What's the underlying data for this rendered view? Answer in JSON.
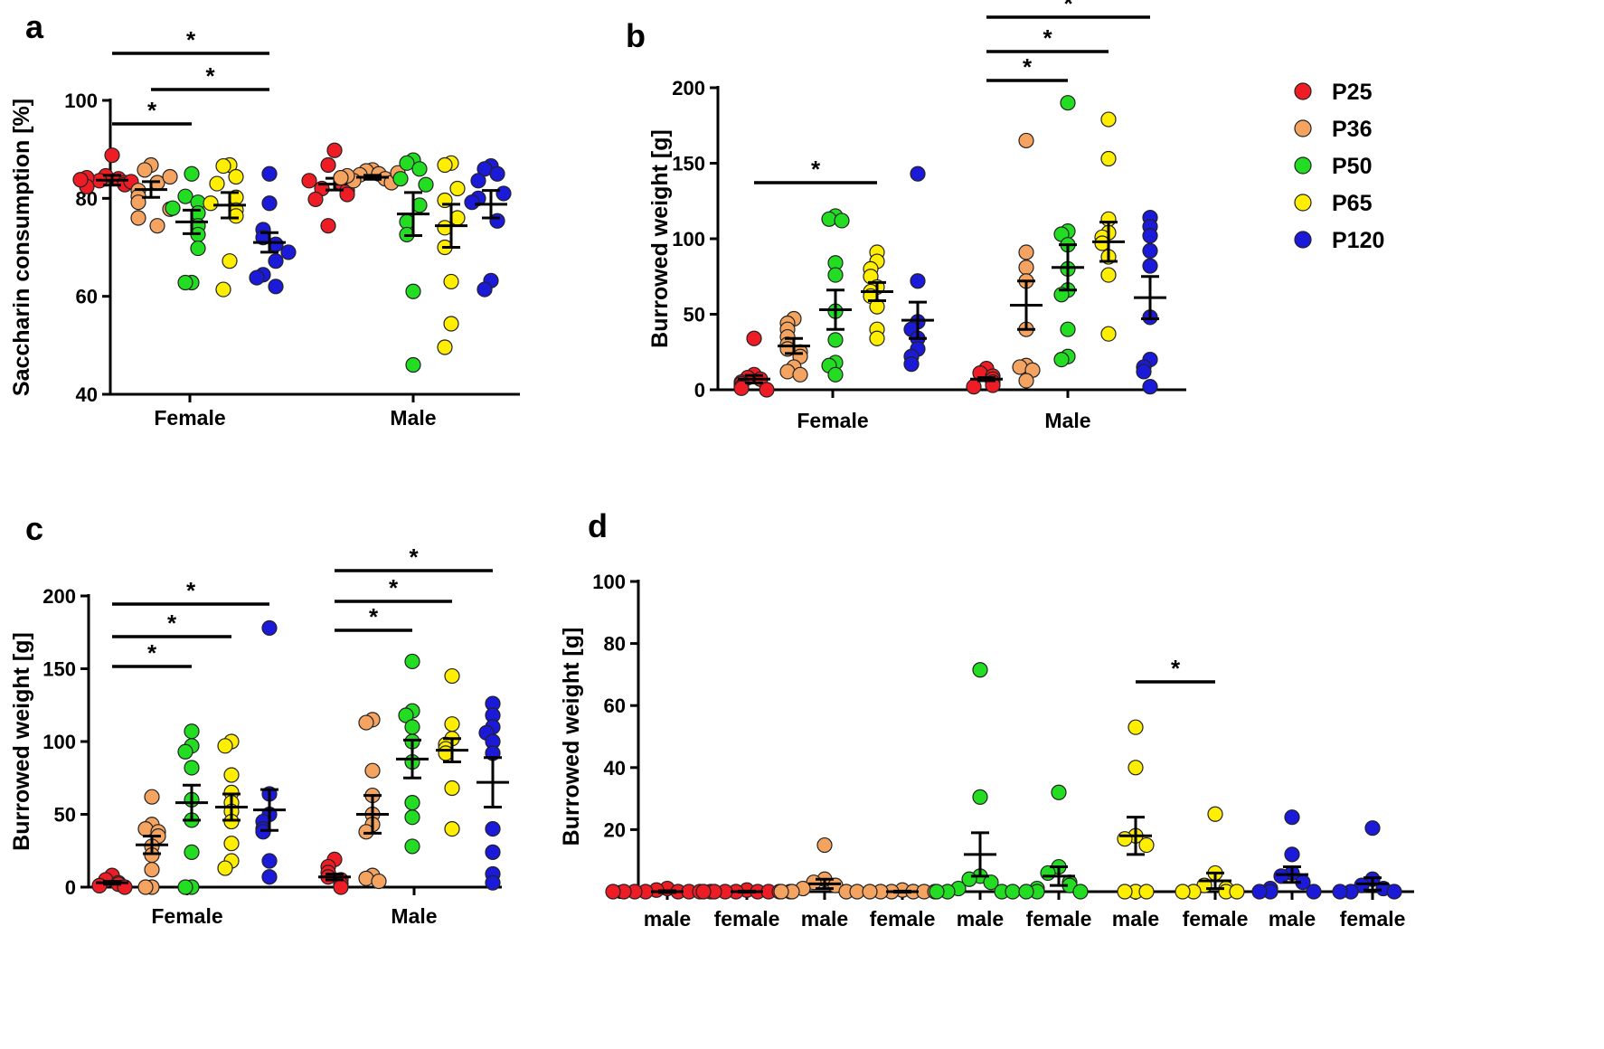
{
  "colors": {
    "P25": "#ee1c24",
    "P36": "#f4a460",
    "P50": "#22dd22",
    "P65": "#ffee00",
    "P120": "#1a1ad8"
  },
  "chart_data": [
    {
      "panel": "a",
      "type": "scatter",
      "ylabel": "Saccharin consumption [%]",
      "ylim": [
        40,
        100
      ],
      "yticks": [
        40,
        60,
        80,
        100
      ],
      "categories": [
        "Female",
        "Male"
      ],
      "groups": [
        {
          "category": "Female",
          "series": "P25",
          "mean": 83.7,
          "sem": 1.0,
          "points": [
            88.8,
            84.6,
            84.0,
            83.6,
            83.2,
            82.8,
            83.4,
            84.2,
            82.4,
            83.8
          ]
        },
        {
          "category": "Female",
          "series": "P36",
          "mean": 81.8,
          "sem": 1.6,
          "points": [
            86.8,
            85.8,
            83.2,
            81.6,
            80.4,
            79.2,
            76.0,
            74.4,
            77.8,
            84.4
          ]
        },
        {
          "category": "Female",
          "series": "P50",
          "mean": 75.2,
          "sem": 2.4,
          "points": [
            85.0,
            80.4,
            79.2,
            77.0,
            74.4,
            72.6,
            69.8,
            62.8,
            62.8,
            78.0
          ]
        },
        {
          "category": "Female",
          "series": "P65",
          "mean": 78.6,
          "sem": 2.6,
          "points": [
            86.8,
            86.6,
            84.4,
            83.0,
            80.2,
            77.6,
            76.4,
            67.2,
            61.4,
            79.0
          ]
        },
        {
          "category": "Female",
          "series": "P120",
          "mean": 71.0,
          "sem": 2.0,
          "points": [
            85.0,
            79.0,
            73.6,
            72.0,
            70.6,
            67.2,
            64.4,
            62.0,
            63.8,
            69.0
          ]
        },
        {
          "category": "Male",
          "series": "P25",
          "mean": 82.9,
          "sem": 1.2,
          "points": [
            89.8,
            86.8,
            84.2,
            83.2,
            82.0,
            81.6,
            80.8,
            79.8,
            74.4,
            83.6
          ]
        },
        {
          "category": "Male",
          "series": "P36",
          "mean": 84.3,
          "sem": 0.4,
          "points": [
            85.8,
            85.6,
            85.0,
            84.8,
            84.0,
            83.6,
            83.2,
            84.6,
            85.2,
            84.2
          ]
        },
        {
          "category": "Male",
          "series": "P50",
          "mean": 76.8,
          "sem": 4.4,
          "points": [
            87.8,
            87.2,
            86.0,
            84.0,
            82.8,
            78.6,
            75.2,
            72.6,
            61.0,
            46.0
          ]
        },
        {
          "category": "Male",
          "series": "P65",
          "mean": 74.4,
          "sem": 4.4,
          "points": [
            87.2,
            86.8,
            82.0,
            79.6,
            74.0,
            70.0,
            63.0,
            54.4,
            49.6,
            76.0
          ]
        },
        {
          "category": "Male",
          "series": "P120",
          "mean": 78.8,
          "sem": 2.8,
          "points": [
            86.6,
            86.0,
            85.0,
            83.6,
            81.0,
            80.0,
            75.4,
            63.2,
            61.4,
            79.2
          ]
        }
      ],
      "significance": [
        {
          "from": "Female P25",
          "to": "Female P50",
          "label": "*"
        },
        {
          "from": "Female P36",
          "to": "Female P120",
          "label": "*"
        },
        {
          "from": "Female P25",
          "to": "Female P120",
          "label": "*"
        }
      ]
    },
    {
      "panel": "b",
      "type": "scatter",
      "ylabel": "Burrowed weight [g]",
      "ylim": [
        0,
        200
      ],
      "yticks": [
        0,
        50,
        100,
        150,
        200
      ],
      "categories": [
        "Female",
        "Male"
      ],
      "legend": {
        "position": "top-right",
        "entries": [
          "P25",
          "P36",
          "P50",
          "P65",
          "P120"
        ]
      },
      "groups": [
        {
          "category": "Female",
          "series": "P25",
          "mean": 7,
          "sem": 2.5,
          "points": [
            34,
            10,
            8,
            7,
            5,
            4,
            2,
            1,
            0
          ]
        },
        {
          "category": "Female",
          "series": "P36",
          "mean": 29,
          "sem": 5,
          "points": [
            47,
            44,
            40,
            35,
            30,
            27,
            25,
            22,
            15,
            12,
            10
          ]
        },
        {
          "category": "Female",
          "series": "P50",
          "mean": 53,
          "sem": 13,
          "points": [
            115,
            113,
            112,
            84,
            76,
            52,
            33,
            18,
            16,
            10
          ]
        },
        {
          "category": "Female",
          "series": "P65",
          "mean": 65,
          "sem": 6,
          "points": [
            91,
            85,
            80,
            75,
            68,
            65,
            62,
            55,
            40,
            34
          ]
        },
        {
          "category": "Female",
          "series": "P120",
          "mean": 46,
          "sem": 12,
          "points": [
            143,
            72,
            45,
            40,
            34,
            27,
            22,
            17
          ]
        },
        {
          "category": "Male",
          "series": "P25",
          "mean": 7,
          "sem": 1,
          "points": [
            14,
            11,
            9,
            7,
            5,
            3,
            2
          ]
        },
        {
          "category": "Male",
          "series": "P36",
          "mean": 56,
          "sem": 16,
          "points": [
            165,
            91,
            81,
            72,
            40,
            16,
            15,
            13,
            6
          ]
        },
        {
          "category": "Male",
          "series": "P50",
          "mean": 81,
          "sem": 15,
          "points": [
            190,
            105,
            103,
            96,
            80,
            66,
            63,
            40,
            22,
            20
          ]
        },
        {
          "category": "Male",
          "series": "P65",
          "mean": 98,
          "sem": 13,
          "points": [
            179,
            153,
            113,
            104,
            101,
            97,
            88,
            76,
            37
          ]
        },
        {
          "category": "Male",
          "series": "P120",
          "mean": 61,
          "sem": 14,
          "points": [
            114,
            108,
            102,
            92,
            82,
            48,
            20,
            15,
            12,
            2
          ]
        }
      ],
      "significance": [
        {
          "from": "Female P25",
          "to": "Female P65",
          "label": "*"
        },
        {
          "from": "Male P25",
          "to": "Male P50",
          "label": "*"
        },
        {
          "from": "Male P25",
          "to": "Male P65",
          "label": "*"
        },
        {
          "from": "Male P25",
          "to": "Male P120",
          "label": "*"
        }
      ]
    },
    {
      "panel": "c",
      "type": "scatter",
      "ylabel": "Burrowed weight [g]",
      "ylim": [
        0,
        200
      ],
      "yticks": [
        0,
        50,
        100,
        150,
        200
      ],
      "categories": [
        "Female",
        "Male"
      ],
      "groups": [
        {
          "category": "Female",
          "series": "P25",
          "mean": 3,
          "sem": 1,
          "points": [
            8,
            5,
            3,
            2,
            1,
            0
          ]
        },
        {
          "category": "Female",
          "series": "P36",
          "mean": 29,
          "sem": 6,
          "points": [
            62,
            43,
            40,
            38,
            35,
            28,
            22,
            12,
            0,
            0
          ]
        },
        {
          "category": "Female",
          "series": "P50",
          "mean": 58,
          "sem": 12,
          "points": [
            107,
            97,
            93,
            82,
            60,
            46,
            24,
            0,
            0
          ]
        },
        {
          "category": "Female",
          "series": "P65",
          "mean": 55,
          "sem": 9,
          "points": [
            100,
            97,
            77,
            65,
            58,
            52,
            45,
            30,
            18,
            13
          ]
        },
        {
          "category": "Female",
          "series": "P120",
          "mean": 53,
          "sem": 14,
          "points": [
            178,
            64,
            50,
            45,
            40,
            38,
            18,
            7
          ]
        },
        {
          "category": "Male",
          "series": "P25",
          "mean": 7,
          "sem": 2,
          "points": [
            19,
            14,
            10,
            7,
            5,
            2,
            0
          ]
        },
        {
          "category": "Male",
          "series": "P36",
          "mean": 50,
          "sem": 13,
          "points": [
            115,
            113,
            80,
            63,
            50,
            43,
            38,
            8,
            6,
            4
          ]
        },
        {
          "category": "Male",
          "series": "P50",
          "mean": 88,
          "sem": 13,
          "points": [
            155,
            121,
            118,
            110,
            100,
            86,
            58,
            48,
            28
          ]
        },
        {
          "category": "Male",
          "series": "P65",
          "mean": 94,
          "sem": 8,
          "points": [
            145,
            112,
            102,
            98,
            95,
            92,
            68,
            40
          ]
        },
        {
          "category": "Male",
          "series": "P120",
          "mean": 72,
          "sem": 17,
          "points": [
            126,
            118,
            110,
            106,
            100,
            92,
            40,
            24,
            9,
            3
          ]
        }
      ],
      "significance": [
        {
          "from": "Female P25",
          "to": "Female P50",
          "label": "*"
        },
        {
          "from": "Female P25",
          "to": "Female P65",
          "label": "*"
        },
        {
          "from": "Female P25",
          "to": "Female P120",
          "label": "*"
        },
        {
          "from": "Male P25",
          "to": "Male P50",
          "label": "*"
        },
        {
          "from": "Male P25",
          "to": "Male P65",
          "label": "*"
        },
        {
          "from": "Male P25",
          "to": "Male P120",
          "label": "*"
        }
      ]
    },
    {
      "panel": "d",
      "type": "scatter",
      "ylabel": "Burrowed weight [g]",
      "ylim": [
        0,
        100
      ],
      "yticks": [
        0,
        20,
        40,
        60,
        80,
        100
      ],
      "categories": [
        "male",
        "female",
        "male",
        "female",
        "male",
        "female",
        "male",
        "female",
        "male",
        "female"
      ],
      "groups": [
        {
          "category": "male",
          "series": "P25",
          "mean": 0,
          "sem": 0.3,
          "points": [
            1,
            0.5,
            0,
            0,
            0,
            0,
            0,
            0,
            0,
            0
          ]
        },
        {
          "category": "female",
          "series": "P25",
          "mean": 0,
          "sem": 0.2,
          "points": [
            0.5,
            0,
            0,
            0,
            0,
            0,
            0,
            0,
            0
          ]
        },
        {
          "category": "male",
          "series": "P36",
          "mean": 2.5,
          "sem": 1.5,
          "points": [
            15,
            4,
            3,
            2,
            1,
            0,
            0,
            0,
            0
          ]
        },
        {
          "category": "female",
          "series": "P36",
          "mean": 0,
          "sem": 0.2,
          "points": [
            0.5,
            0,
            0,
            0,
            0,
            0,
            0
          ]
        },
        {
          "category": "male",
          "series": "P50",
          "mean": 12,
          "sem": 7,
          "points": [
            71.5,
            30.5,
            5,
            4,
            3,
            1,
            0,
            0,
            0,
            0
          ]
        },
        {
          "category": "female",
          "series": "P50",
          "mean": 5,
          "sem": 3,
          "points": [
            32,
            8,
            6,
            3,
            2,
            1,
            0,
            0,
            0
          ]
        },
        {
          "category": "male",
          "series": "P65",
          "mean": 18,
          "sem": 6,
          "points": [
            53,
            40,
            18,
            17,
            15,
            0,
            0,
            0
          ]
        },
        {
          "category": "female",
          "series": "P65",
          "mean": 3.5,
          "sem": 2.5,
          "points": [
            25,
            6,
            2,
            1,
            0,
            0,
            0,
            0
          ]
        },
        {
          "category": "male",
          "series": "P120",
          "mean": 5.5,
          "sem": 2.5,
          "points": [
            24,
            12,
            6,
            5,
            3,
            1,
            0,
            0,
            0
          ]
        },
        {
          "category": "female",
          "series": "P120",
          "mean": 2.5,
          "sem": 2,
          "points": [
            20.5,
            4,
            2,
            1,
            0,
            0,
            0
          ]
        }
      ],
      "significance": [
        {
          "from": "male P65",
          "to": "female P65",
          "label": "*"
        }
      ]
    }
  ]
}
